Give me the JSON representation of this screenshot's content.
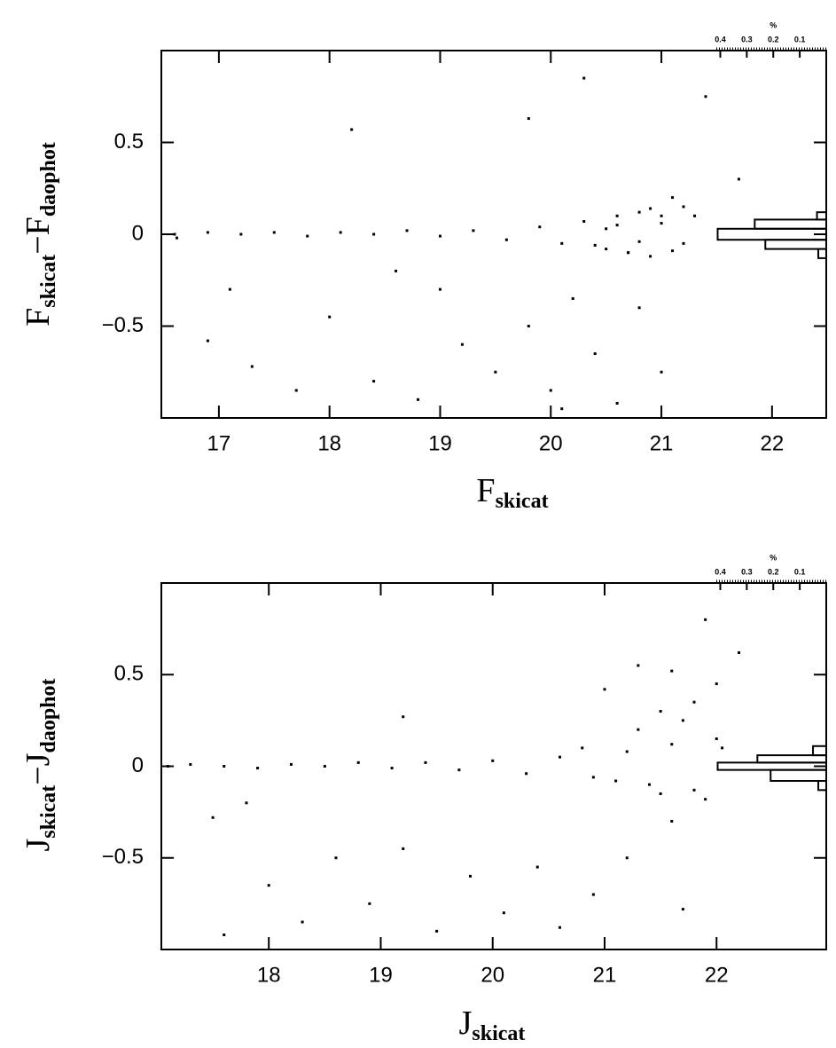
{
  "chart_data": [
    {
      "type": "scatter",
      "color": "#000000",
      "xlabel": [
        "F",
        "skicat"
      ],
      "ylabel": [
        "F",
        "skicat",
        "−F",
        "daophot"
      ],
      "x": [
        16.6,
        16.62,
        16.9,
        17.2,
        17.5,
        17.8,
        18.1,
        18.4,
        18.7,
        19.0,
        19.3,
        19.6,
        19.9,
        20.1,
        20.3,
        20.5,
        20.6,
        20.7,
        20.8,
        20.9,
        21.0,
        21.1,
        21.2,
        21.3,
        20.4,
        20.6,
        20.8,
        21.0,
        21.2,
        20.5,
        20.7,
        20.9,
        21.1,
        18.2,
        19.8,
        20.3,
        21.4,
        21.7,
        16.9,
        17.3,
        17.7,
        18.0,
        18.4,
        18.8,
        19.2,
        19.5,
        19.8,
        20.0,
        20.2,
        20.4,
        20.6,
        20.8,
        19.0,
        18.6,
        20.1,
        21.0,
        17.1
      ],
      "y": [
        0,
        -0.02,
        0.01,
        0,
        0.01,
        -0.01,
        0.01,
        0,
        0.02,
        -0.01,
        0.02,
        -0.03,
        0.04,
        -0.05,
        0.07,
        -0.08,
        0.1,
        -0.1,
        0.12,
        -0.12,
        0.1,
        -0.09,
        0.15,
        0.1,
        -0.06,
        0.05,
        -0.04,
        0.06,
        -0.05,
        0.03,
        -0.1,
        0.14,
        0.2,
        0.57,
        0.63,
        0.85,
        0.75,
        0.3,
        -0.58,
        -0.72,
        -0.85,
        -0.45,
        -0.8,
        -0.9,
        -0.6,
        -0.75,
        -0.5,
        -0.85,
        -0.35,
        -0.65,
        -0.92,
        -0.4,
        -0.3,
        -0.2,
        -0.95,
        -0.75,
        -0.3
      ],
      "xlim": [
        16.48,
        22.49
      ],
      "ylim": [
        -1,
        1
      ],
      "xticks": [
        17,
        18,
        19,
        20,
        21,
        22
      ],
      "yticks": [
        {
          "value": -0.5,
          "label": "−0.5"
        },
        0,
        0.5
      ],
      "histogram": {
        "label": "%",
        "bins": [
          -0.13,
          -0.08,
          -0.03,
          0.03,
          0.08,
          0.12
        ],
        "counts": [
          0.03,
          0.23,
          0.41,
          0.27,
          0.035
        ],
        "xlim": [
          0.415,
          0
        ],
        "xticks": [
          0.4,
          0.3,
          0.2,
          0.1
        ]
      }
    },
    {
      "type": "scatter",
      "color": "#000000",
      "xlabel": [
        "J",
        "skicat"
      ],
      "ylabel": [
        "J",
        "skicat",
        "−J",
        "daophot"
      ],
      "x": [
        17.1,
        17.3,
        17.6,
        17.9,
        18.2,
        18.5,
        18.8,
        19.1,
        19.4,
        19.7,
        20.0,
        20.3,
        20.6,
        20.9,
        21.2,
        21.4,
        21.6,
        21.8,
        22.0,
        21.3,
        21.5,
        21.7,
        21.9,
        20.8,
        21.1,
        21.5,
        21.8,
        22.05,
        19.2,
        21.0,
        21.3,
        21.6,
        21.9,
        22.2,
        22.0,
        17.5,
        17.8,
        18.0,
        18.3,
        18.6,
        18.9,
        19.2,
        19.5,
        19.8,
        20.1,
        20.4,
        20.6,
        20.9,
        21.2,
        21.6,
        21.7,
        17.6
      ],
      "y": [
        0,
        0.01,
        0,
        -0.01,
        0.01,
        0,
        0.02,
        -0.01,
        0.02,
        -0.02,
        0.03,
        -0.04,
        0.05,
        -0.06,
        0.08,
        -0.1,
        0.12,
        -0.13,
        0.15,
        0.2,
        -0.15,
        0.25,
        -0.18,
        0.1,
        -0.08,
        0.3,
        0.35,
        0.1,
        0.27,
        0.42,
        0.55,
        0.52,
        0.8,
        0.62,
        0.45,
        -0.28,
        -0.2,
        -0.65,
        -0.85,
        -0.5,
        -0.75,
        -0.45,
        -0.9,
        -0.6,
        -0.8,
        -0.55,
        -0.88,
        -0.7,
        -0.5,
        -0.3,
        -0.78,
        -0.92
      ],
      "xlim": [
        17.04,
        22.98
      ],
      "ylim": [
        -1,
        1
      ],
      "xticks": [
        18,
        19,
        20,
        21,
        22
      ],
      "yticks": [
        {
          "value": -0.5,
          "label": "−0.5"
        },
        0,
        0.5
      ],
      "histogram": {
        "label": "%",
        "bins": [
          -0.13,
          -0.08,
          -0.02,
          0.02,
          0.06,
          0.11
        ],
        "counts": [
          0.03,
          0.21,
          0.41,
          0.26,
          0.05
        ],
        "xlim": [
          0.415,
          0
        ],
        "xticks": [
          0.4,
          0.3,
          0.2,
          0.1
        ]
      }
    }
  ]
}
